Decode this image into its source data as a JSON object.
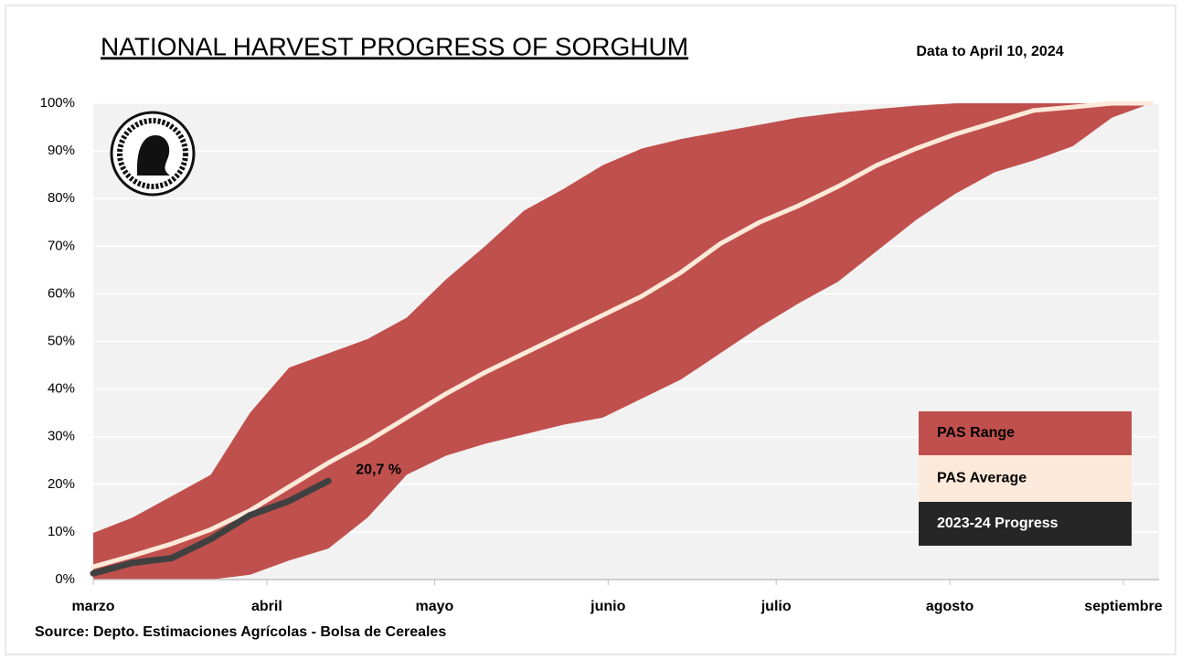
{
  "chart_data": {
    "type": "line",
    "title": "NATIONAL HARVEST PROGRESS OF SORGHUM",
    "subtitle": "Data to April 10, 2024",
    "source": "Source: Depto. Estimaciones Agrícolas - Bolsa de Cereales",
    "x": [
      0,
      1,
      2,
      3,
      4,
      5,
      6,
      7,
      8,
      9,
      10,
      11,
      12,
      13,
      14,
      15,
      16,
      17,
      18,
      19,
      20,
      21,
      22,
      23,
      24,
      25,
      26,
      27
    ],
    "xlim": [
      0,
      27.2
    ],
    "xticks": [
      {
        "value": 0,
        "label": "marzo"
      },
      {
        "value": 4.43,
        "label": "abril"
      },
      {
        "value": 8.71,
        "label": "mayo"
      },
      {
        "value": 13.14,
        "label": "junio"
      },
      {
        "value": 17.43,
        "label": "julio"
      },
      {
        "value": 21.86,
        "label": "agosto"
      },
      {
        "value": 26.29,
        "label": "septiembre"
      }
    ],
    "ylim": [
      0,
      100
    ],
    "yticks": [
      {
        "value": 0,
        "label": "0%"
      },
      {
        "value": 10,
        "label": "10%"
      },
      {
        "value": 20,
        "label": "20%"
      },
      {
        "value": 30,
        "label": "30%"
      },
      {
        "value": 40,
        "label": "40%"
      },
      {
        "value": 50,
        "label": "50%"
      },
      {
        "value": 60,
        "label": "60%"
      },
      {
        "value": 70,
        "label": "70%"
      },
      {
        "value": 80,
        "label": "80%"
      },
      {
        "value": 90,
        "label": "90%"
      },
      {
        "value": 100,
        "label": "100%"
      }
    ],
    "grid": true,
    "legend": "lower right",
    "series": [
      {
        "name": "PAS Range",
        "color": "#c0504d",
        "upper": [
          9.8,
          13,
          17.5,
          22,
          35,
          44.5,
          47.5,
          50.5,
          55,
          63,
          70,
          77.5,
          82,
          87,
          90.5,
          92.5,
          94,
          95.5,
          97,
          98,
          98.8,
          99.5,
          100,
          100,
          100,
          100,
          100,
          100
        ],
        "lower": [
          0,
          0,
          0,
          0,
          1,
          4,
          6.5,
          13,
          22,
          26,
          28.5,
          30.5,
          32.5,
          34,
          38,
          42,
          47.5,
          53,
          58,
          62.5,
          69,
          75.5,
          81,
          85.5,
          88,
          91,
          97,
          100
        ]
      },
      {
        "name": "PAS Average",
        "color": "#fde9d9",
        "values": [
          2.7,
          5,
          7.5,
          10.5,
          14.5,
          19.5,
          24.5,
          29,
          34,
          39,
          43.5,
          47.5,
          51.5,
          55.5,
          59.5,
          64.5,
          70.5,
          75,
          78.5,
          82.5,
          87,
          90.5,
          93.5,
          96,
          98.5,
          99.2,
          100,
          100
        ]
      },
      {
        "name": "2023-24 Progress",
        "color": "#404040",
        "values": [
          1.3,
          3.5,
          4.5,
          8.5,
          13.5,
          16.5,
          20.7,
          null,
          null,
          null,
          null,
          null,
          null,
          null,
          null,
          null,
          null,
          null,
          null,
          null,
          null,
          null,
          null,
          null,
          null,
          null,
          null,
          null
        ],
        "value_labels": [
          null,
          null,
          null,
          null,
          null,
          null,
          "20,7 %",
          null,
          null,
          null,
          null,
          null,
          null,
          null,
          null,
          null,
          null,
          null,
          null,
          null,
          null,
          null,
          null,
          null,
          null,
          null,
          null,
          null
        ]
      }
    ]
  }
}
